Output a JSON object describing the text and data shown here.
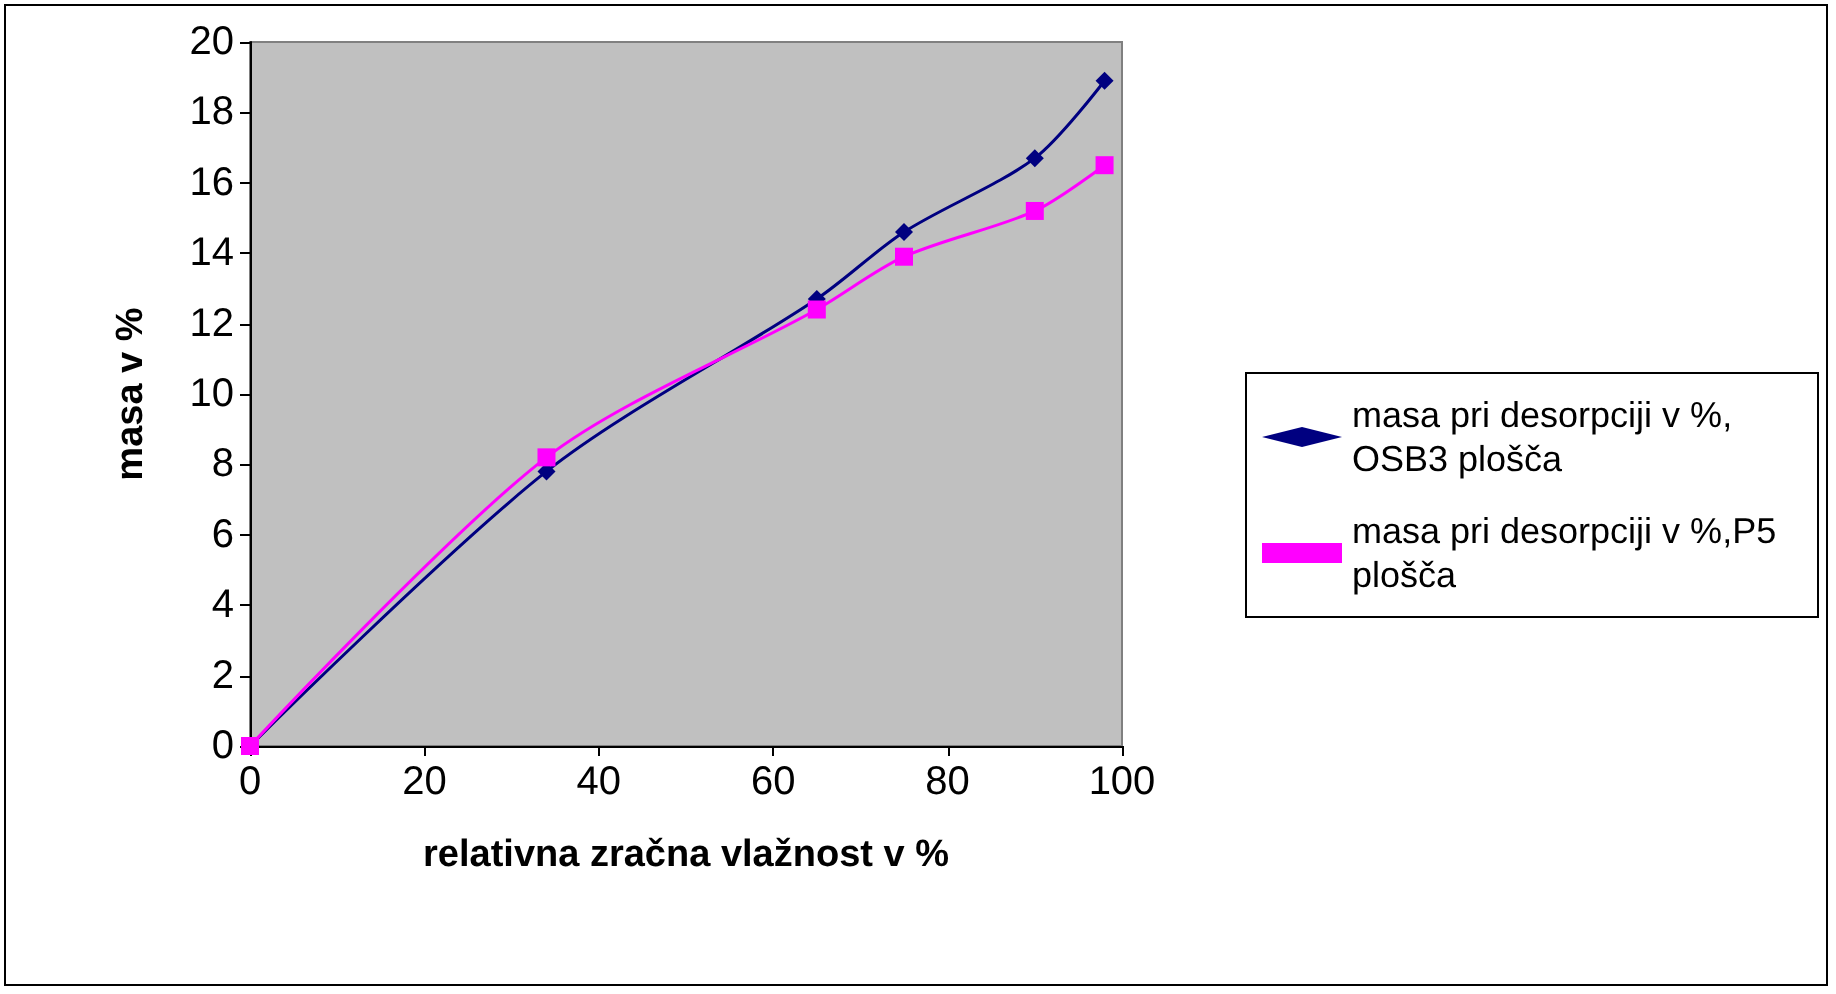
{
  "chart_data": {
    "type": "line",
    "xlabel": "relativna zračna vlažnost v %",
    "ylabel": "masa v %",
    "x": [
      0,
      34,
      65,
      75,
      90,
      98
    ],
    "series": [
      {
        "name": "masa pri desorpciji v %,OSB3 plošča",
        "color": "#000080",
        "marker": "diamond",
        "values": [
          0,
          7.8,
          12.7,
          14.6,
          16.7,
          18.9
        ]
      },
      {
        "name": "masa pri desorpciji v %,P5 plošča",
        "color": "#ff00ff",
        "marker": "square",
        "values": [
          0,
          8.2,
          12.4,
          13.9,
          15.2,
          16.5
        ]
      }
    ],
    "xlim": [
      0,
      100
    ],
    "xticks": [
      0,
      20,
      40,
      60,
      80,
      100
    ],
    "ylim": [
      0,
      20
    ],
    "yticks": [
      0,
      2,
      4,
      6,
      8,
      10,
      12,
      14,
      16,
      18,
      20
    ],
    "grid": false,
    "legend": "right"
  }
}
